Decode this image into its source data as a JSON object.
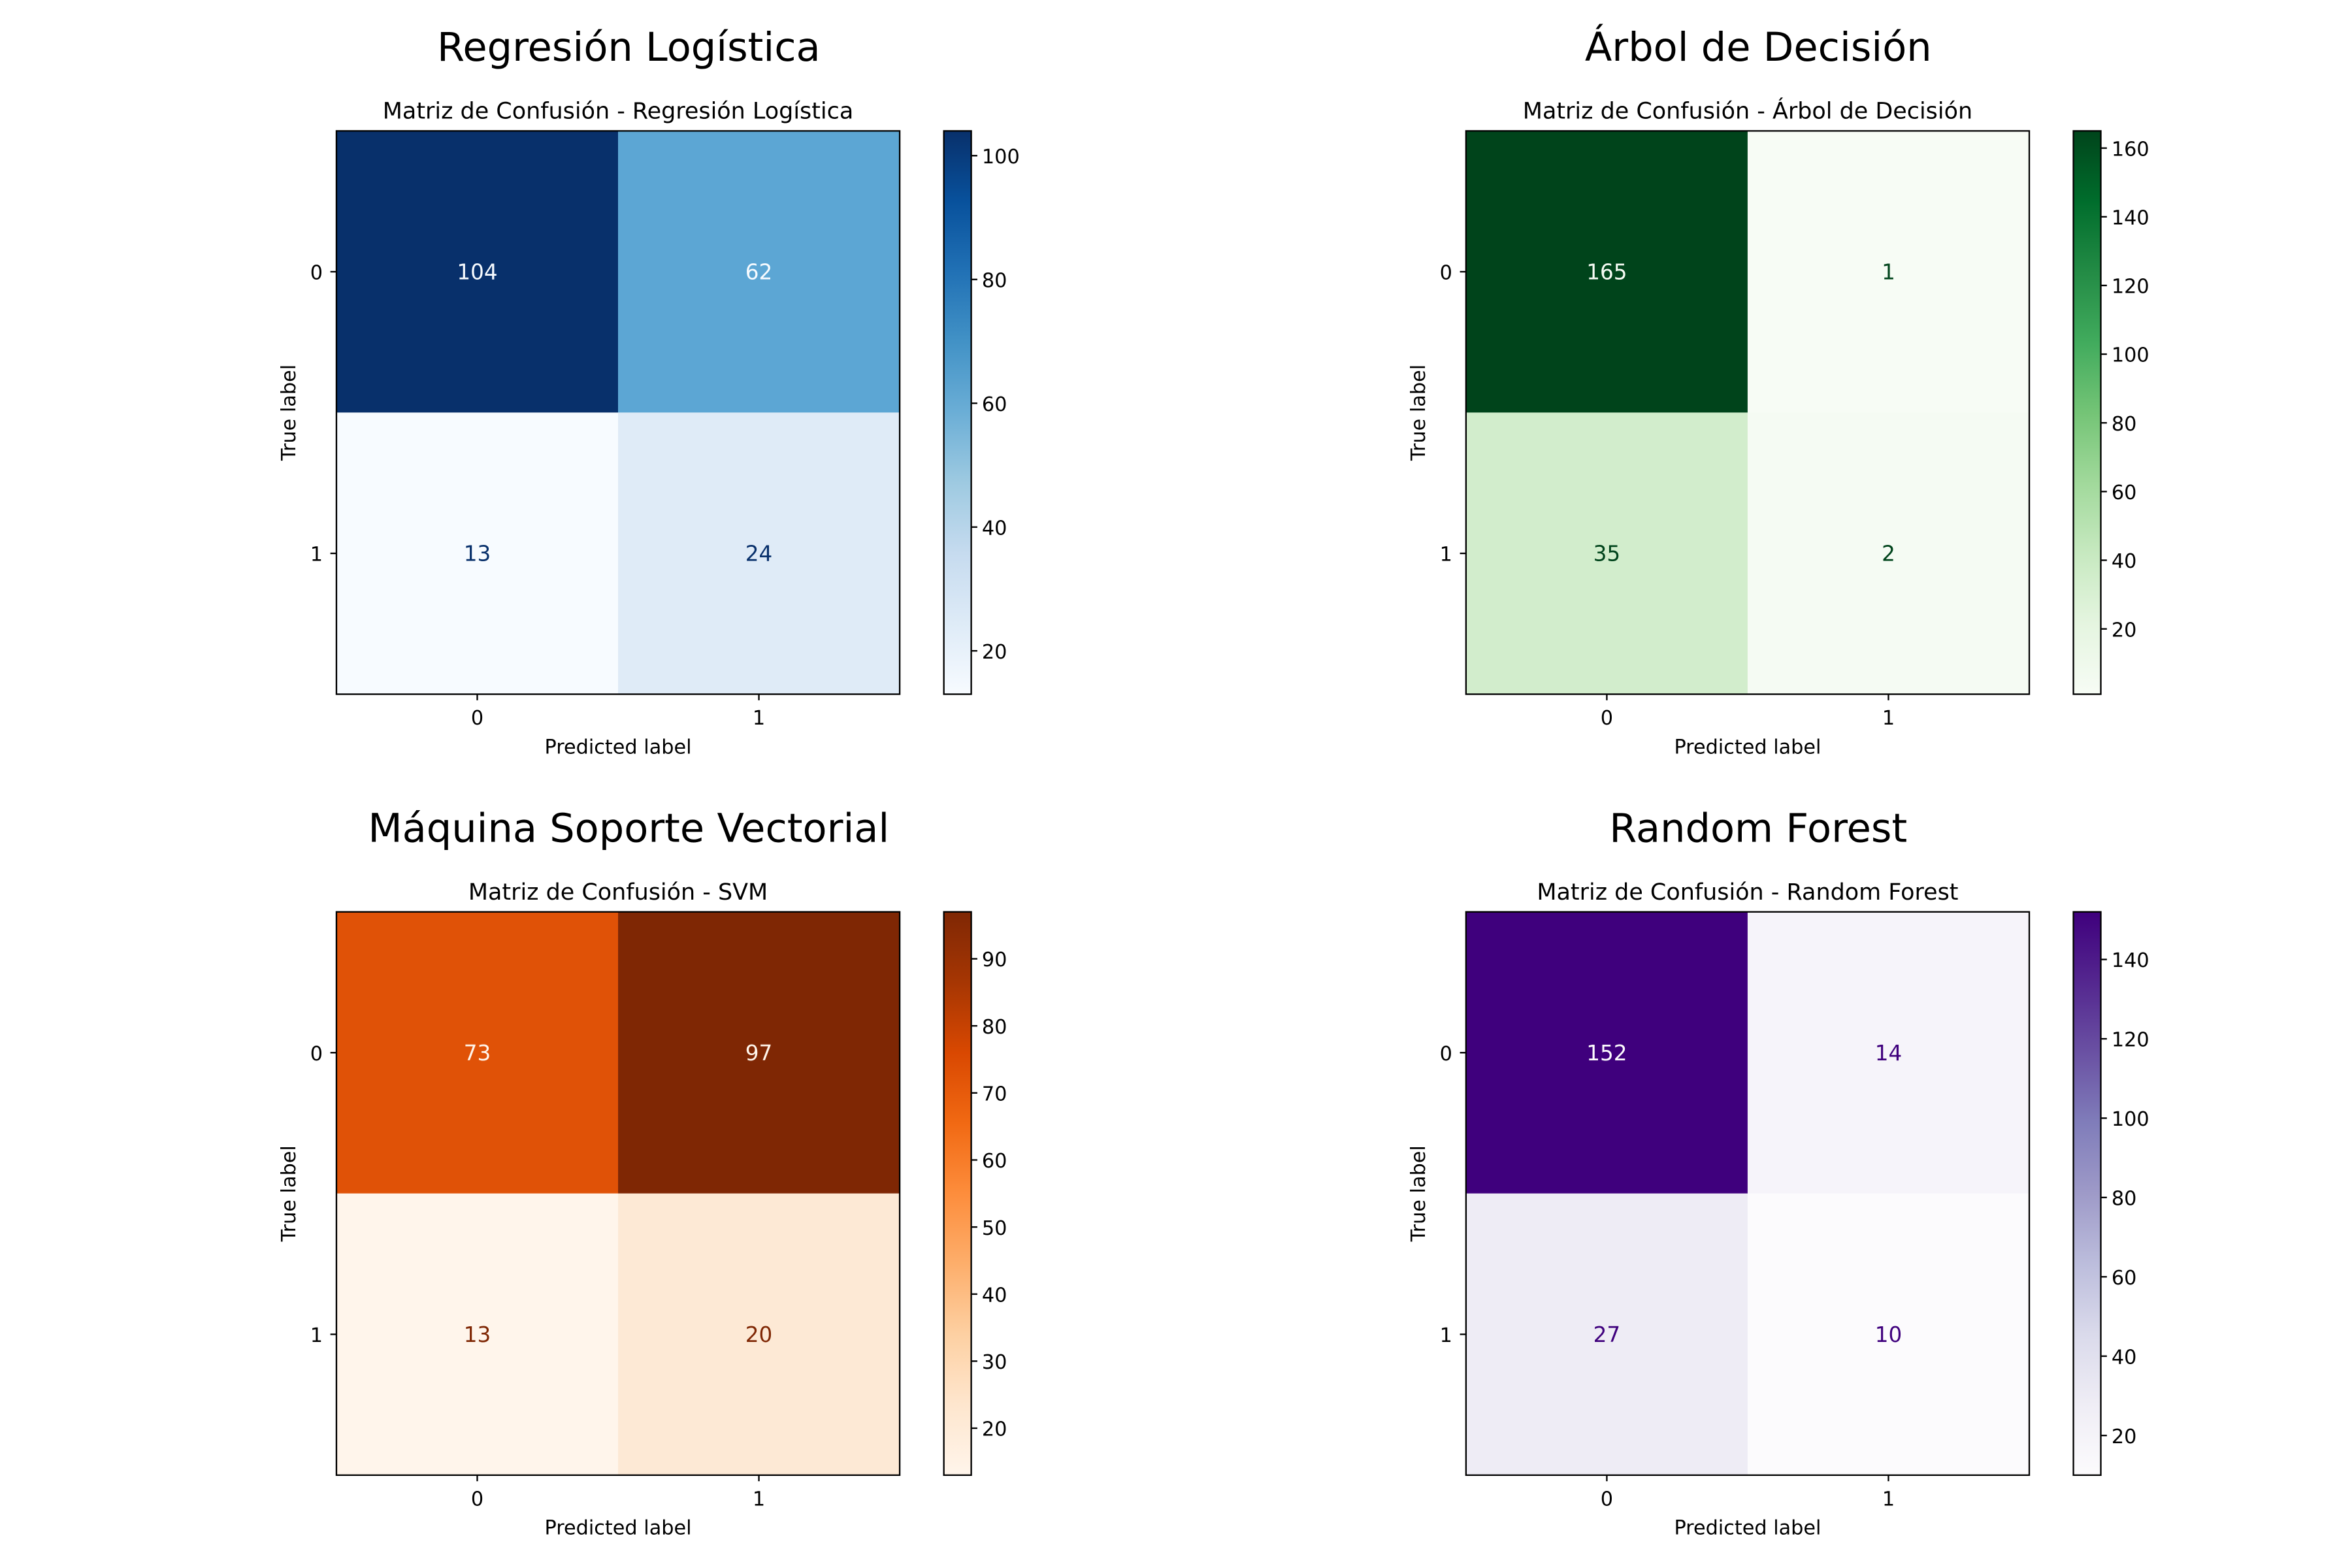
{
  "figure": {
    "panels": [
      {
        "suptitle": "Regresión Logística"
      },
      {
        "suptitle": "Árbol de Decisión"
      },
      {
        "suptitle": "Máquina Soporte Vectorial"
      },
      {
        "suptitle": "Random Forest"
      }
    ]
  },
  "chart_data": [
    {
      "type": "heatmap",
      "title": "Matriz de Confusión - Regresión Logística",
      "xlabel": "Predicted label",
      "ylabel": "True label",
      "x_categories": [
        "0",
        "1"
      ],
      "y_categories": [
        "0",
        "1"
      ],
      "values": [
        [
          104,
          62
        ],
        [
          13,
          24
        ]
      ],
      "colormap": "Blues",
      "colorbar": {
        "min": 13,
        "max": 104,
        "ticks": [
          20,
          40,
          60,
          80,
          100
        ]
      },
      "cell_colors": [
        [
          "#08306b",
          "#5ca6d4"
        ],
        [
          "#f7fbff",
          "#dfebf7"
        ]
      ],
      "text_colors": [
        [
          "#f7fbff",
          "#f7fbff"
        ],
        [
          "#08306b",
          "#08306b"
        ]
      ],
      "scale_stops": [
        "#f7fbff",
        "#deebf7",
        "#c6dbef",
        "#9ecae1",
        "#6baed6",
        "#4292c6",
        "#2171b5",
        "#08519c",
        "#08306b"
      ]
    },
    {
      "type": "heatmap",
      "title": "Matriz de Confusión - Árbol de Decisión",
      "xlabel": "Predicted label",
      "ylabel": "True label",
      "x_categories": [
        "0",
        "1"
      ],
      "y_categories": [
        "0",
        "1"
      ],
      "values": [
        [
          165,
          1
        ],
        [
          35,
          2
        ]
      ],
      "colormap": "Greens",
      "colorbar": {
        "min": 1,
        "max": 165,
        "ticks": [
          20,
          40,
          60,
          80,
          100,
          120,
          140,
          160
        ]
      },
      "cell_colors": [
        [
          "#00441b",
          "#f7fcf5"
        ],
        [
          "#d2edcc",
          "#f5fbf3"
        ]
      ],
      "text_colors": [
        [
          "#f7fcf5",
          "#00441b"
        ],
        [
          "#00441b",
          "#00441b"
        ]
      ],
      "scale_stops": [
        "#f7fcf5",
        "#e5f5e0",
        "#c7e9c0",
        "#a1d99b",
        "#74c476",
        "#41ab5d",
        "#238b45",
        "#006d2c",
        "#00441b"
      ]
    },
    {
      "type": "heatmap",
      "title": "Matriz de Confusión - SVM",
      "xlabel": "Predicted label",
      "ylabel": "True label",
      "x_categories": [
        "0",
        "1"
      ],
      "y_categories": [
        "0",
        "1"
      ],
      "values": [
        [
          73,
          97
        ],
        [
          13,
          20
        ]
      ],
      "colormap": "Oranges",
      "colorbar": {
        "min": 13,
        "max": 97,
        "ticks": [
          20,
          30,
          40,
          50,
          60,
          70,
          80,
          90
        ]
      },
      "cell_colors": [
        [
          "#e05207",
          "#7f2704"
        ],
        [
          "#fff5eb",
          "#fde9d5"
        ]
      ],
      "text_colors": [
        [
          "#fff5eb",
          "#fff5eb"
        ],
        [
          "#7f2704",
          "#7f2704"
        ]
      ],
      "scale_stops": [
        "#fff5eb",
        "#fee6ce",
        "#fdd0a2",
        "#fdae6b",
        "#fd8d3c",
        "#f16913",
        "#d94801",
        "#a63603",
        "#7f2704"
      ]
    },
    {
      "type": "heatmap",
      "title": "Matriz de Confusión - Random Forest",
      "xlabel": "Predicted label",
      "ylabel": "True label",
      "x_categories": [
        "0",
        "1"
      ],
      "y_categories": [
        "0",
        "1"
      ],
      "values": [
        [
          152,
          14
        ],
        [
          27,
          10
        ]
      ],
      "colormap": "Purples",
      "colorbar": {
        "min": 10,
        "max": 152,
        "ticks": [
          20,
          40,
          60,
          80,
          100,
          120,
          140
        ]
      },
      "cell_colors": [
        [
          "#3f007d",
          "#f6f4fa"
        ],
        [
          "#eeecf5",
          "#fcfbfd"
        ]
      ],
      "text_colors": [
        [
          "#fcfbfd",
          "#3f007d"
        ],
        [
          "#3f007d",
          "#3f007d"
        ]
      ],
      "scale_stops": [
        "#fcfbfd",
        "#efedf5",
        "#dadaeb",
        "#bcbddc",
        "#9e9ac8",
        "#807dba",
        "#6a51a3",
        "#54278f",
        "#3f007d"
      ]
    }
  ]
}
